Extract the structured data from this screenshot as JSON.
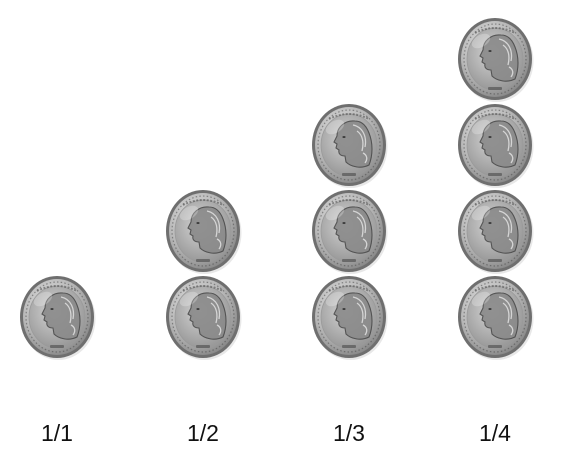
{
  "stacks": [
    {
      "label": "1/1",
      "coin_count": 1
    },
    {
      "label": "1/2",
      "coin_count": 2
    },
    {
      "label": "1/3",
      "coin_count": 3
    },
    {
      "label": "1/4",
      "coin_count": 4
    }
  ],
  "coin": {
    "icon": "quarter-coin-icon",
    "rim_color": "#6f6f6f",
    "face_color": "#b9b9b9",
    "highlight_color": "#e2e2e2",
    "shadow_color": "#4a4a4a"
  }
}
